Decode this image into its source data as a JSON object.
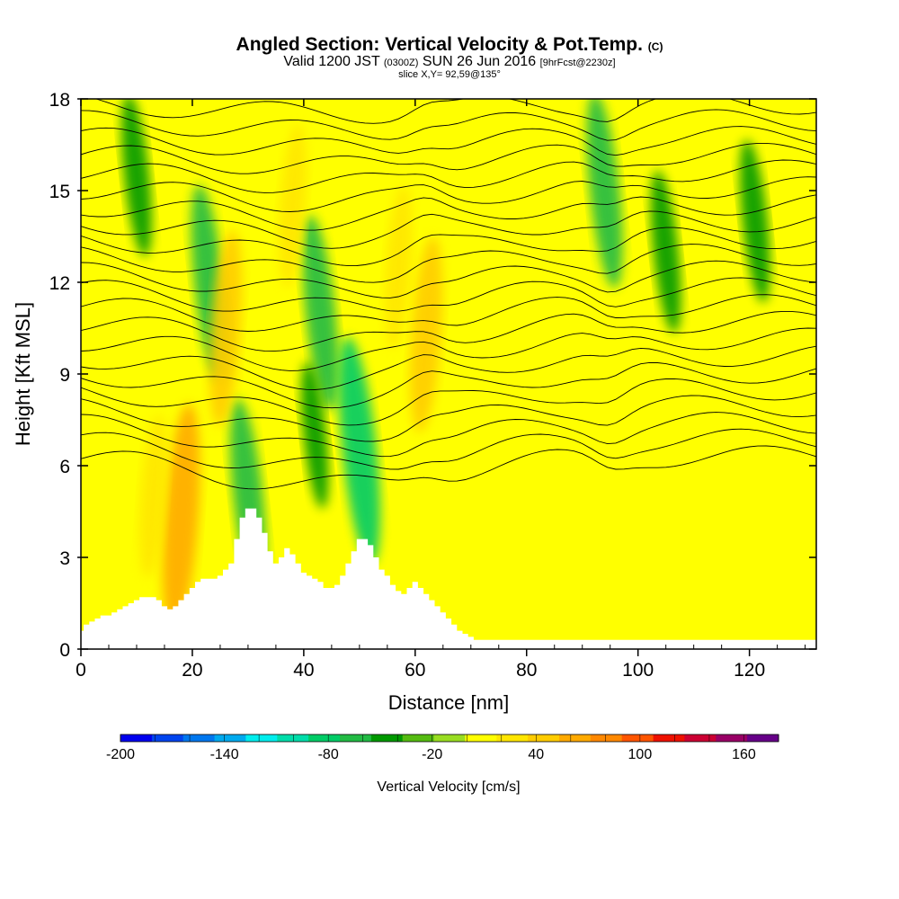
{
  "title": {
    "main": "Angled Section: Vertical Velocity & Pot.Temp.",
    "main_suffix": "(C)",
    "valid_prefix": "Valid 1200 JST",
    "valid_zulu": "(0300Z)",
    "valid_date": "SUN 26 Jun 2016",
    "valid_fcst": "[9hrFcst@2230z]",
    "slice": "slice X,Y= 92,59@135°"
  },
  "chart_data": {
    "type": "heatmap",
    "xlabel": "Distance [nm]",
    "ylabel": "Height [Kft MSL]",
    "xlim": [
      0,
      132
    ],
    "ylim": [
      0,
      18
    ],
    "xticks": [
      "0",
      "20",
      "40",
      "60",
      "80",
      "100",
      "120"
    ],
    "xtick_values": [
      0,
      20,
      40,
      60,
      80,
      100,
      120
    ],
    "yticks": [
      "0",
      "3",
      "6",
      "9",
      "12",
      "15",
      "18"
    ],
    "ytick_values": [
      0,
      3,
      6,
      9,
      12,
      15,
      18
    ],
    "field": "Vertical Velocity",
    "contours": "Potential Temperature",
    "terrain_profile": {
      "x": [
        0,
        0.5,
        1.5,
        2.5,
        3.5,
        4.5,
        5.5,
        6.5,
        7.5,
        8.5,
        9.5,
        10.5,
        11.5,
        12.5,
        13.5,
        14.5,
        15.5,
        16.5,
        17.5,
        18.5,
        19.5,
        20.5,
        21.5,
        22.5,
        23.5,
        24.5,
        25.5,
        26.5,
        27.5,
        28.5,
        29.5,
        30.5,
        31.5,
        32.5,
        33.5,
        34.5,
        35.5,
        36.5,
        37.5,
        38.5,
        39.5,
        40.5,
        41.5,
        42.5,
        43.5,
        44.5,
        45.5,
        46.5,
        47.5,
        48.5,
        49.5,
        50.5,
        51.5,
        52.5,
        53.5,
        54.5,
        55.5,
        56.5,
        57.5,
        58.5,
        59.5,
        60.5,
        61.5,
        62.5,
        63.5,
        64.5,
        65.5,
        66.5,
        67.5,
        68.5,
        69.5,
        70.5,
        71.5,
        132
      ],
      "y": [
        0.6,
        0.8,
        0.9,
        1.0,
        1.1,
        1.1,
        1.2,
        1.3,
        1.4,
        1.5,
        1.6,
        1.7,
        1.7,
        1.7,
        1.6,
        1.4,
        1.3,
        1.4,
        1.6,
        1.8,
        2.0,
        2.2,
        2.3,
        2.3,
        2.3,
        2.4,
        2.6,
        2.8,
        3.6,
        4.3,
        4.6,
        4.6,
        4.3,
        3.8,
        3.2,
        2.8,
        3.0,
        3.3,
        3.1,
        2.8,
        2.5,
        2.4,
        2.3,
        2.2,
        2.0,
        2.0,
        2.1,
        2.4,
        2.8,
        3.2,
        3.6,
        3.6,
        3.4,
        3.0,
        2.6,
        2.4,
        2.1,
        1.9,
        1.8,
        2.0,
        2.2,
        2.0,
        1.8,
        1.6,
        1.4,
        1.2,
        1.0,
        0.8,
        0.6,
        0.5,
        0.4,
        0.3,
        0.3,
        0.3
      ]
    },
    "updrafts_cm_s": [
      {
        "x": 18,
        "z_kft": 4.3,
        "value": 80
      },
      {
        "x": 26,
        "z_kft": 10.5,
        "value": 60
      },
      {
        "x": 62,
        "z_kft": 10.3,
        "value": 60
      },
      {
        "x": 13,
        "z_kft": 5.0,
        "value": 40
      },
      {
        "x": 38,
        "z_kft": 14.5,
        "value": 40
      },
      {
        "x": 57,
        "z_kft": 12.5,
        "value": 40
      },
      {
        "x": 78,
        "z_kft": 10.5,
        "value": 20
      },
      {
        "x": 115,
        "z_kft": 3.0,
        "value": 20
      }
    ],
    "downdrafts_cm_s": [
      {
        "x": 23,
        "z_kft": 12.0,
        "value": -60
      },
      {
        "x": 43,
        "z_kft": 11.0,
        "value": -60
      },
      {
        "x": 50,
        "z_kft": 6.5,
        "value": -80
      },
      {
        "x": 30,
        "z_kft": 5.0,
        "value": -60
      },
      {
        "x": 94,
        "z_kft": 15.0,
        "value": -60
      },
      {
        "x": 105,
        "z_kft": 13.0,
        "value": -40
      },
      {
        "x": 121,
        "z_kft": 14.0,
        "value": -40
      },
      {
        "x": 10,
        "z_kft": 15.5,
        "value": -40
      },
      {
        "x": 42,
        "z_kft": 7.0,
        "value": -30
      }
    ],
    "colorbar": {
      "label": "Vertical Velocity [cm/s]",
      "min": -200,
      "max": 180,
      "step": 20,
      "tick_labels": [
        "-200",
        "-140",
        "-80",
        "-20",
        "40",
        "100",
        "160"
      ],
      "tick_values": [
        -200,
        -140,
        -80,
        -20,
        40,
        100,
        160
      ],
      "colors": [
        "#0000ee",
        "#0044ee",
        "#0077ee",
        "#00aaee",
        "#00eeee",
        "#00ddaa",
        "#00cc66",
        "#22bb44",
        "#009900",
        "#55bb11",
        "#99dd22",
        "#ffff00",
        "#ffe600",
        "#ffcc00",
        "#ffaa00",
        "#ff8800",
        "#ff5500",
        "#ee1100",
        "#cc0033",
        "#990066",
        "#660088"
      ]
    }
  }
}
